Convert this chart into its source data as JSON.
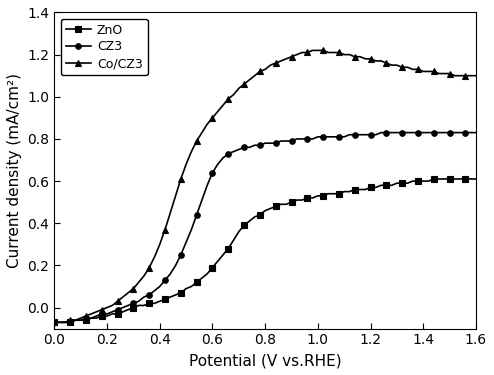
{
  "title": "",
  "xlabel": "Potential (V vs.RHE)",
  "ylabel": "Current density (mA/cm²)",
  "xlim": [
    0.0,
    1.6
  ],
  "ylim": [
    -0.1,
    1.4
  ],
  "xticks": [
    0.0,
    0.2,
    0.4,
    0.6,
    0.8,
    1.0,
    1.2,
    1.4,
    1.6
  ],
  "yticks": [
    0.0,
    0.2,
    0.4,
    0.6,
    0.8,
    1.0,
    1.2,
    1.4
  ],
  "background_color": "#ffffff",
  "series": [
    {
      "label": "ZnO",
      "marker": "s",
      "color": "#000000",
      "x": [
        0.0,
        0.02,
        0.04,
        0.06,
        0.08,
        0.1,
        0.12,
        0.14,
        0.16,
        0.18,
        0.2,
        0.22,
        0.24,
        0.26,
        0.28,
        0.3,
        0.32,
        0.34,
        0.36,
        0.38,
        0.4,
        0.42,
        0.44,
        0.46,
        0.48,
        0.5,
        0.52,
        0.54,
        0.56,
        0.58,
        0.6,
        0.62,
        0.64,
        0.66,
        0.68,
        0.7,
        0.72,
        0.74,
        0.76,
        0.78,
        0.8,
        0.82,
        0.84,
        0.86,
        0.88,
        0.9,
        0.92,
        0.94,
        0.96,
        0.98,
        1.0,
        1.02,
        1.04,
        1.06,
        1.08,
        1.1,
        1.12,
        1.14,
        1.16,
        1.18,
        1.2,
        1.22,
        1.24,
        1.26,
        1.28,
        1.3,
        1.32,
        1.34,
        1.36,
        1.38,
        1.4,
        1.42,
        1.44,
        1.46,
        1.48,
        1.5,
        1.52,
        1.54,
        1.56,
        1.58,
        1.6
      ],
      "y": [
        -0.07,
        -0.07,
        -0.07,
        -0.07,
        -0.06,
        -0.06,
        -0.06,
        -0.05,
        -0.05,
        -0.04,
        -0.04,
        -0.03,
        -0.03,
        -0.02,
        -0.01,
        0.0,
        0.01,
        0.01,
        0.02,
        0.02,
        0.03,
        0.04,
        0.05,
        0.06,
        0.07,
        0.09,
        0.1,
        0.12,
        0.14,
        0.16,
        0.19,
        0.22,
        0.25,
        0.28,
        0.32,
        0.36,
        0.39,
        0.41,
        0.43,
        0.44,
        0.46,
        0.47,
        0.48,
        0.49,
        0.49,
        0.5,
        0.51,
        0.51,
        0.52,
        0.52,
        0.53,
        0.53,
        0.54,
        0.54,
        0.54,
        0.55,
        0.55,
        0.56,
        0.56,
        0.56,
        0.57,
        0.57,
        0.58,
        0.58,
        0.58,
        0.59,
        0.59,
        0.59,
        0.6,
        0.6,
        0.6,
        0.6,
        0.61,
        0.61,
        0.61,
        0.61,
        0.61,
        0.61,
        0.61,
        0.61,
        0.61
      ]
    },
    {
      "label": "CZ3",
      "marker": "o",
      "color": "#000000",
      "x": [
        0.0,
        0.02,
        0.04,
        0.06,
        0.08,
        0.1,
        0.12,
        0.14,
        0.16,
        0.18,
        0.2,
        0.22,
        0.24,
        0.26,
        0.28,
        0.3,
        0.32,
        0.34,
        0.36,
        0.38,
        0.4,
        0.42,
        0.44,
        0.46,
        0.48,
        0.5,
        0.52,
        0.54,
        0.56,
        0.58,
        0.6,
        0.62,
        0.64,
        0.66,
        0.68,
        0.7,
        0.72,
        0.74,
        0.76,
        0.78,
        0.8,
        0.82,
        0.84,
        0.86,
        0.88,
        0.9,
        0.92,
        0.94,
        0.96,
        0.98,
        1.0,
        1.02,
        1.04,
        1.06,
        1.08,
        1.1,
        1.12,
        1.14,
        1.16,
        1.18,
        1.2,
        1.22,
        1.24,
        1.26,
        1.28,
        1.3,
        1.32,
        1.34,
        1.36,
        1.38,
        1.4,
        1.42,
        1.44,
        1.46,
        1.48,
        1.5,
        1.52,
        1.54,
        1.56,
        1.58,
        1.6
      ],
      "y": [
        -0.07,
        -0.07,
        -0.07,
        -0.07,
        -0.06,
        -0.06,
        -0.05,
        -0.05,
        -0.04,
        -0.03,
        -0.03,
        -0.02,
        -0.01,
        0.0,
        0.01,
        0.02,
        0.03,
        0.05,
        0.06,
        0.08,
        0.1,
        0.13,
        0.16,
        0.2,
        0.25,
        0.31,
        0.37,
        0.44,
        0.51,
        0.58,
        0.64,
        0.68,
        0.71,
        0.73,
        0.74,
        0.75,
        0.76,
        0.76,
        0.77,
        0.77,
        0.78,
        0.78,
        0.78,
        0.79,
        0.79,
        0.79,
        0.8,
        0.8,
        0.8,
        0.8,
        0.81,
        0.81,
        0.81,
        0.81,
        0.81,
        0.81,
        0.82,
        0.82,
        0.82,
        0.82,
        0.82,
        0.82,
        0.83,
        0.83,
        0.83,
        0.83,
        0.83,
        0.83,
        0.83,
        0.83,
        0.83,
        0.83,
        0.83,
        0.83,
        0.83,
        0.83,
        0.83,
        0.83,
        0.83,
        0.83,
        0.83
      ]
    },
    {
      "label": "Co/CZ3",
      "marker": "^",
      "color": "#000000",
      "x": [
        0.0,
        0.02,
        0.04,
        0.06,
        0.08,
        0.1,
        0.12,
        0.14,
        0.16,
        0.18,
        0.2,
        0.22,
        0.24,
        0.26,
        0.28,
        0.3,
        0.32,
        0.34,
        0.36,
        0.38,
        0.4,
        0.42,
        0.44,
        0.46,
        0.48,
        0.5,
        0.52,
        0.54,
        0.56,
        0.58,
        0.6,
        0.62,
        0.64,
        0.66,
        0.68,
        0.7,
        0.72,
        0.74,
        0.76,
        0.78,
        0.8,
        0.82,
        0.84,
        0.86,
        0.88,
        0.9,
        0.92,
        0.94,
        0.96,
        0.98,
        1.0,
        1.02,
        1.04,
        1.06,
        1.08,
        1.1,
        1.12,
        1.14,
        1.16,
        1.18,
        1.2,
        1.22,
        1.24,
        1.26,
        1.28,
        1.3,
        1.32,
        1.34,
        1.36,
        1.38,
        1.4,
        1.42,
        1.44,
        1.46,
        1.48,
        1.5,
        1.52,
        1.54,
        1.56,
        1.58,
        1.6
      ],
      "y": [
        -0.07,
        -0.07,
        -0.07,
        -0.06,
        -0.06,
        -0.05,
        -0.04,
        -0.03,
        -0.02,
        -0.01,
        0.0,
        0.01,
        0.03,
        0.05,
        0.07,
        0.09,
        0.12,
        0.15,
        0.19,
        0.24,
        0.3,
        0.37,
        0.45,
        0.53,
        0.61,
        0.68,
        0.74,
        0.79,
        0.83,
        0.87,
        0.9,
        0.93,
        0.96,
        0.99,
        1.01,
        1.04,
        1.06,
        1.08,
        1.1,
        1.12,
        1.13,
        1.15,
        1.16,
        1.17,
        1.18,
        1.19,
        1.2,
        1.21,
        1.21,
        1.22,
        1.22,
        1.22,
        1.21,
        1.21,
        1.21,
        1.2,
        1.2,
        1.19,
        1.19,
        1.18,
        1.18,
        1.17,
        1.17,
        1.16,
        1.15,
        1.15,
        1.14,
        1.14,
        1.13,
        1.13,
        1.12,
        1.12,
        1.12,
        1.11,
        1.11,
        1.11,
        1.1,
        1.1,
        1.1,
        1.1,
        1.1
      ]
    }
  ],
  "marker_every": 3,
  "markersize": 4,
  "linewidth": 1.2,
  "legend_loc": "upper left",
  "legend_fontsize": 9,
  "axis_fontsize": 11,
  "tick_fontsize": 10
}
